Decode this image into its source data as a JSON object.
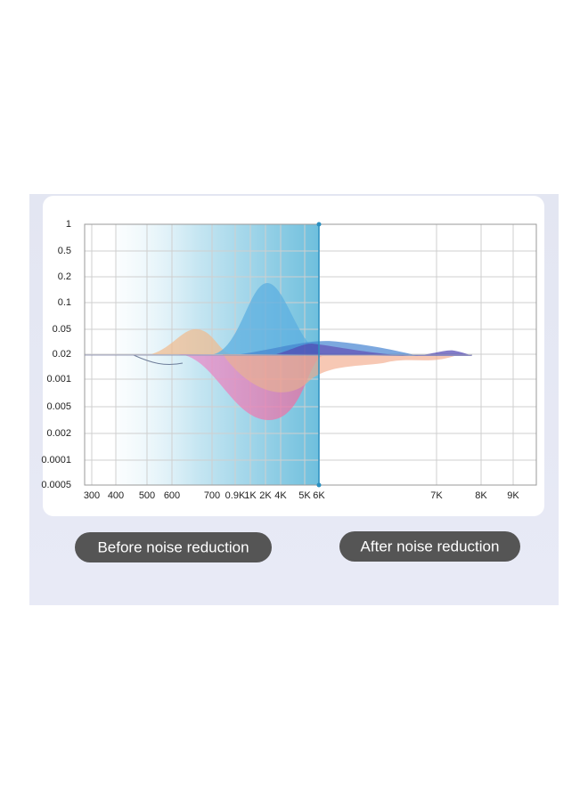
{
  "graph": {
    "y_labels": [
      "1",
      "0.5",
      "0.2",
      "0.1",
      "0.05",
      "0.02",
      "0.001",
      "0.005",
      "0.002",
      "0.0001",
      "0.0005"
    ],
    "x_labels": [
      "300",
      "400",
      "500",
      "600",
      "700",
      "0.9K",
      "1K",
      "2K",
      "4K",
      "5K",
      "6K",
      "7K",
      "8K",
      "9K"
    ]
  },
  "buttons": {
    "before": "Before noise reduction",
    "after": "After noise reduction"
  }
}
